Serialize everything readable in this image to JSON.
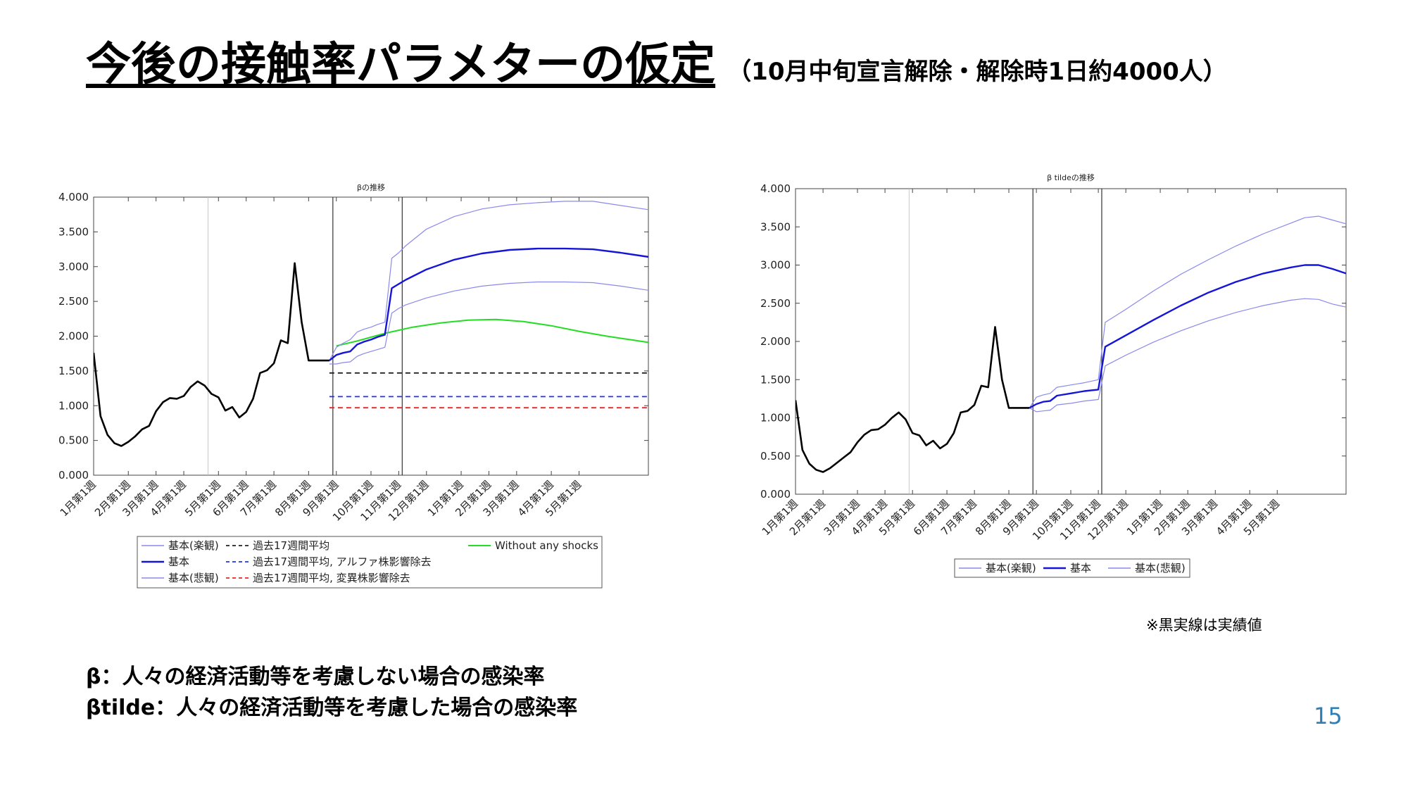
{
  "slide": {
    "title": "今後の接触率パラメターの仮定",
    "subtitle": "（10月中旬宣言解除・解除時1日約4000人）",
    "note": "※黒実線は実績値",
    "definitions": [
      "β：人々の経済活動等を考慮しない場合の感染率",
      "βtilde：人々の経済活動等を考慮した場合の感染率"
    ],
    "page_number": "15"
  },
  "colors": {
    "actual": "#000000",
    "base": "#1515d8",
    "band": "#8a8aec",
    "green": "#22dd22",
    "black_dashed": "#222222",
    "blue_dashed": "#2233ee",
    "red_dashed": "#ee2222",
    "vline": "#333333"
  },
  "chart_data": [
    {
      "id": "beta",
      "type": "line",
      "title": "βの推移",
      "xlabel": "",
      "ylabel": "",
      "ylim": [
        0,
        4
      ],
      "yticks": [
        "0.000",
        "0.500",
        "1.000",
        "1.500",
        "2.000",
        "2.500",
        "3.000",
        "3.500",
        "4.000"
      ],
      "xlim": [
        0,
        80
      ],
      "x_ticks": [
        {
          "x": 0,
          "label": "1月第1週"
        },
        {
          "x": 5,
          "label": "2月第1週"
        },
        {
          "x": 9,
          "label": "3月第1週"
        },
        {
          "x": 13,
          "label": "4月第1週"
        },
        {
          "x": 18,
          "label": "5月第1週"
        },
        {
          "x": 22,
          "label": "6月第1週"
        },
        {
          "x": 26,
          "label": "7月第1週"
        },
        {
          "x": 31,
          "label": "8月第1週"
        },
        {
          "x": 35,
          "label": "9月第1週"
        },
        {
          "x": 40,
          "label": "10月第1週"
        },
        {
          "x": 44,
          "label": "11月第1週"
        },
        {
          "x": 48,
          "label": "12月第1週"
        },
        {
          "x": 53,
          "label": "1月第1週"
        },
        {
          "x": 57,
          "label": "2月第1週"
        },
        {
          "x": 61,
          "label": "3月第1週"
        },
        {
          "x": 66,
          "label": "4月第1週"
        },
        {
          "x": 70,
          "label": "5月第1週"
        }
      ],
      "vlines": [
        16.5,
        34.5,
        44.5
      ],
      "series": [
        {
          "name": "実績",
          "style": "actual",
          "x": [
            0,
            1,
            2,
            3,
            4,
            5,
            6,
            7,
            8,
            9,
            10,
            11,
            12,
            13,
            14,
            15,
            16,
            17,
            18,
            19,
            20,
            21,
            22,
            23,
            24,
            25,
            26,
            27,
            28,
            29,
            30,
            31,
            32,
            33,
            34
          ],
          "values": [
            1.76,
            0.85,
            0.58,
            0.46,
            0.42,
            0.48,
            0.56,
            0.66,
            0.71,
            0.92,
            1.05,
            1.11,
            1.1,
            1.14,
            1.27,
            1.35,
            1.29,
            1.17,
            1.12,
            0.93,
            0.98,
            0.83,
            0.91,
            1.1,
            1.47,
            1.51,
            1.61,
            1.94,
            1.9,
            3.05,
            2.2,
            1.65,
            1.65,
            1.65,
            1.65
          ]
        },
        {
          "name": "基本(楽観)",
          "style": "band",
          "x": [
            34,
            35,
            36,
            37,
            38,
            39,
            40,
            41,
            42,
            43,
            44,
            45,
            48,
            52,
            56,
            60,
            64,
            68,
            72,
            76,
            80
          ],
          "values": [
            1.65,
            1.84,
            1.9,
            1.95,
            2.06,
            2.1,
            2.13,
            2.17,
            2.2,
            3.12,
            3.2,
            3.3,
            3.54,
            3.72,
            3.83,
            3.89,
            3.92,
            3.94,
            3.94,
            3.88,
            3.82
          ]
        },
        {
          "name": "基本",
          "style": "base",
          "x": [
            34,
            35,
            36,
            37,
            38,
            39,
            40,
            41,
            42,
            43,
            44,
            45,
            48,
            52,
            56,
            60,
            64,
            68,
            72,
            76,
            80
          ],
          "values": [
            1.65,
            1.73,
            1.76,
            1.78,
            1.88,
            1.92,
            1.95,
            1.99,
            2.02,
            2.69,
            2.75,
            2.81,
            2.96,
            3.1,
            3.19,
            3.24,
            3.26,
            3.26,
            3.25,
            3.2,
            3.14
          ]
        },
        {
          "name": "基本(悲観)",
          "style": "band",
          "x": [
            34,
            35,
            36,
            37,
            38,
            39,
            40,
            41,
            42,
            43,
            44,
            45,
            48,
            52,
            56,
            60,
            64,
            68,
            72,
            76,
            80
          ],
          "values": [
            1.6,
            1.6,
            1.62,
            1.63,
            1.71,
            1.75,
            1.78,
            1.81,
            1.84,
            2.33,
            2.4,
            2.45,
            2.55,
            2.65,
            2.72,
            2.76,
            2.78,
            2.78,
            2.77,
            2.72,
            2.66
          ]
        },
        {
          "name": "Without any shocks",
          "style": "green",
          "x": [
            35,
            38,
            42,
            46,
            50,
            54,
            58,
            62,
            66,
            70,
            74,
            78,
            80
          ],
          "values": [
            1.86,
            1.93,
            2.04,
            2.13,
            2.19,
            2.23,
            2.24,
            2.21,
            2.15,
            2.07,
            2.0,
            1.94,
            1.91
          ]
        },
        {
          "name": "過去17週間平均",
          "style": "black_dashed",
          "x": [
            34,
            80
          ],
          "values": [
            1.47,
            1.47
          ]
        },
        {
          "name": "過去17週間平均, アルファ株影響除去",
          "style": "blue_dashed",
          "x": [
            34,
            80
          ],
          "values": [
            1.13,
            1.13
          ]
        },
        {
          "name": "過去17週間平均, 変異株影響除去",
          "style": "red_dashed",
          "x": [
            34,
            80
          ],
          "values": [
            0.97,
            0.97
          ]
        }
      ],
      "legend": {
        "placement": "bottom",
        "items": [
          {
            "label": "基本(楽観)",
            "style": "band"
          },
          {
            "label": "基本",
            "style": "base"
          },
          {
            "label": "基本(悲観)",
            "style": "band"
          },
          {
            "label": "過去17週間平均",
            "style": "black_dashed"
          },
          {
            "label": "過去17週間平均, アルファ株影響除去",
            "style": "blue_dashed"
          },
          {
            "label": "過去17週間平均, 変異株影響除去",
            "style": "red_dashed"
          },
          {
            "label": "Without any shocks",
            "style": "green"
          }
        ]
      }
    },
    {
      "id": "beta-tilde",
      "type": "line",
      "title": "β tildeの推移",
      "xlabel": "",
      "ylabel": "",
      "ylim": [
        0,
        4
      ],
      "yticks": [
        "0.000",
        "0.500",
        "1.000",
        "1.500",
        "2.000",
        "2.500",
        "3.000",
        "3.500",
        "4.000"
      ],
      "xlim": [
        0,
        80
      ],
      "x_ticks": [
        {
          "x": 0,
          "label": "1月第1週"
        },
        {
          "x": 4,
          "label": "2月第1週"
        },
        {
          "x": 9,
          "label": "3月第1週"
        },
        {
          "x": 13,
          "label": "4月第1週"
        },
        {
          "x": 17,
          "label": "5月第1週"
        },
        {
          "x": 22,
          "label": "6月第1週"
        },
        {
          "x": 26,
          "label": "7月第1週"
        },
        {
          "x": 31,
          "label": "8月第1週"
        },
        {
          "x": 35,
          "label": "9月第1週"
        },
        {
          "x": 40,
          "label": "10月第1週"
        },
        {
          "x": 44,
          "label": "11月第1週"
        },
        {
          "x": 48,
          "label": "12月第1週"
        },
        {
          "x": 53,
          "label": "1月第1週"
        },
        {
          "x": 57,
          "label": "2月第1週"
        },
        {
          "x": 61,
          "label": "3月第1週"
        },
        {
          "x": 66,
          "label": "4月第1週"
        },
        {
          "x": 70,
          "label": "5月第1週"
        }
      ],
      "vlines": [
        16.5,
        34.5,
        44.5
      ],
      "series": [
        {
          "name": "実績",
          "style": "actual",
          "x": [
            0,
            1,
            2,
            3,
            4,
            5,
            6,
            7,
            8,
            9,
            10,
            11,
            12,
            13,
            14,
            15,
            16,
            17,
            18,
            19,
            20,
            21,
            22,
            23,
            24,
            25,
            26,
            27,
            28,
            29,
            30,
            31,
            32,
            33,
            34
          ],
          "values": [
            1.23,
            0.58,
            0.4,
            0.32,
            0.29,
            0.34,
            0.41,
            0.48,
            0.55,
            0.68,
            0.78,
            0.84,
            0.85,
            0.91,
            1.0,
            1.07,
            0.98,
            0.8,
            0.77,
            0.64,
            0.7,
            0.6,
            0.66,
            0.8,
            1.07,
            1.09,
            1.17,
            1.42,
            1.4,
            2.19,
            1.5,
            1.13,
            1.13,
            1.13,
            1.13
          ]
        },
        {
          "name": "基本(楽観)",
          "style": "band",
          "x": [
            34,
            35,
            36,
            37,
            38,
            40,
            42,
            44,
            45,
            48,
            52,
            56,
            60,
            64,
            68,
            72,
            74,
            76,
            78,
            80
          ],
          "values": [
            1.13,
            1.27,
            1.3,
            1.32,
            1.4,
            1.43,
            1.46,
            1.5,
            2.25,
            2.42,
            2.66,
            2.88,
            3.07,
            3.25,
            3.41,
            3.55,
            3.62,
            3.64,
            3.59,
            3.54
          ]
        },
        {
          "name": "基本",
          "style": "base",
          "x": [
            34,
            35,
            36,
            37,
            38,
            40,
            42,
            44,
            45,
            48,
            52,
            56,
            60,
            64,
            68,
            72,
            74,
            76,
            78,
            80
          ],
          "values": [
            1.13,
            1.18,
            1.21,
            1.22,
            1.29,
            1.32,
            1.35,
            1.37,
            1.93,
            2.08,
            2.28,
            2.47,
            2.64,
            2.78,
            2.89,
            2.97,
            3.0,
            3.0,
            2.95,
            2.89
          ]
        },
        {
          "name": "基本(悲観)",
          "style": "band",
          "x": [
            34,
            35,
            36,
            37,
            38,
            40,
            42,
            44,
            45,
            48,
            52,
            56,
            60,
            64,
            68,
            72,
            74,
            76,
            78,
            80
          ],
          "values": [
            1.13,
            1.08,
            1.09,
            1.1,
            1.17,
            1.19,
            1.22,
            1.24,
            1.68,
            1.82,
            1.99,
            2.14,
            2.27,
            2.38,
            2.47,
            2.54,
            2.56,
            2.55,
            2.49,
            2.45
          ]
        }
      ],
      "legend": {
        "placement": "bottom",
        "items": [
          {
            "label": "基本(楽観)",
            "style": "band"
          },
          {
            "label": "基本",
            "style": "base"
          },
          {
            "label": "基本(悲観)",
            "style": "band"
          }
        ]
      }
    }
  ]
}
